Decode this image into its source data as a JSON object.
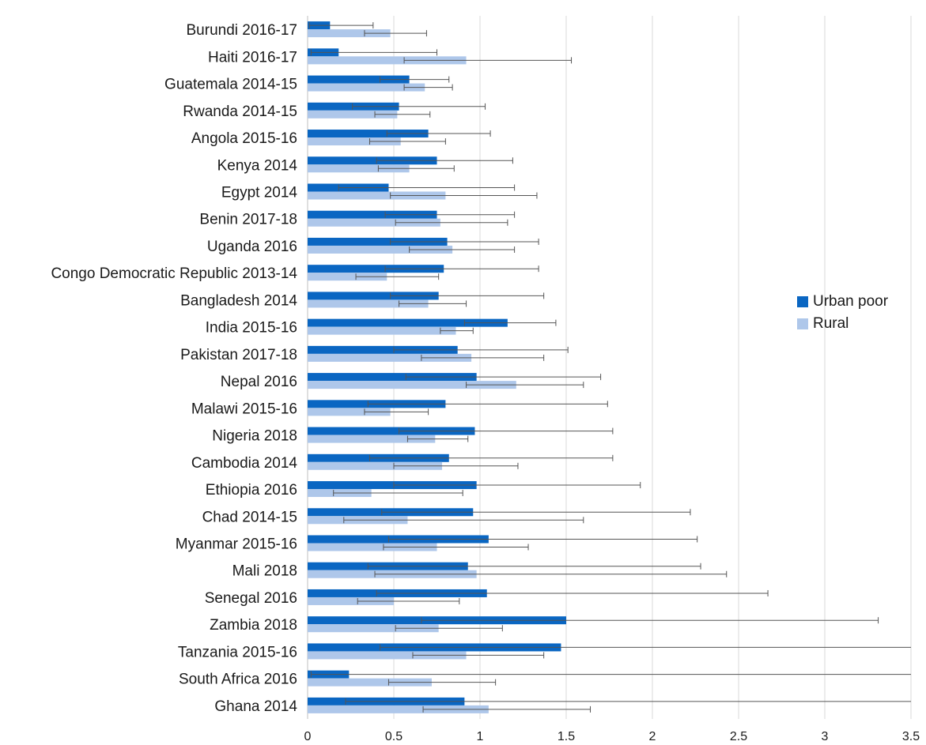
{
  "chart_data": {
    "type": "bar",
    "orientation": "horizontal",
    "categories": [
      "Burundi 2016-17",
      "Haiti 2016-17",
      "Guatemala 2014-15",
      "Rwanda 2014-15",
      "Angola 2015-16",
      "Kenya 2014",
      "Egypt 2014",
      "Benin 2017-18",
      "Uganda 2016",
      "Congo Democratic Republic 2013-14",
      "Bangladesh 2014",
      "India 2015-16",
      "Pakistan 2017-18",
      "Nepal 2016",
      "Malawi 2015-16",
      "Nigeria 2018",
      "Cambodia 2014",
      "Ethiopia 2016",
      "Chad 2014-15",
      "Myanmar 2015-16",
      "Mali 2018",
      "Senegal 2016",
      "Zambia 2018",
      "Tanzania 2015-16",
      "South Africa 2016",
      "Ghana 2014"
    ],
    "series": [
      {
        "name": "Urban poor",
        "color": "#0a66c2",
        "values": [
          0.13,
          0.18,
          0.59,
          0.53,
          0.7,
          0.75,
          0.47,
          0.75,
          0.81,
          0.79,
          0.76,
          1.16,
          0.87,
          0.98,
          0.8,
          0.97,
          0.82,
          0.98,
          0.96,
          1.05,
          0.93,
          1.04,
          1.5,
          1.47,
          0.24,
          0.91
        ],
        "error_low": [
          0.01,
          0.02,
          0.42,
          0.26,
          0.46,
          0.4,
          0.18,
          0.45,
          0.48,
          0.45,
          0.48,
          0.91,
          0.5,
          0.57,
          0.35,
          0.53,
          0.36,
          0.5,
          0.43,
          0.47,
          0.35,
          0.4,
          0.66,
          0.42,
          0.02,
          0.22
        ],
        "error_high": [
          0.38,
          0.75,
          0.82,
          1.03,
          1.06,
          1.19,
          1.2,
          1.2,
          1.34,
          1.34,
          1.37,
          1.44,
          1.51,
          1.7,
          1.74,
          1.77,
          1.77,
          1.93,
          2.22,
          2.26,
          2.28,
          2.67,
          3.31,
          3.5,
          3.5,
          3.5
        ]
      },
      {
        "name": "Rural",
        "color": "#aec7ea",
        "values": [
          0.48,
          0.92,
          0.68,
          0.52,
          0.54,
          0.59,
          0.8,
          0.77,
          0.84,
          0.46,
          0.7,
          0.86,
          0.95,
          1.21,
          0.48,
          0.74,
          0.78,
          0.37,
          0.58,
          0.75,
          0.98,
          0.5,
          0.76,
          0.92,
          0.72,
          1.05
        ],
        "error_low": [
          0.33,
          0.56,
          0.56,
          0.39,
          0.36,
          0.41,
          0.48,
          0.51,
          0.59,
          0.28,
          0.53,
          0.77,
          0.66,
          0.92,
          0.33,
          0.58,
          0.5,
          0.15,
          0.21,
          0.44,
          0.39,
          0.29,
          0.51,
          0.61,
          0.47,
          0.67
        ],
        "error_high": [
          0.69,
          1.53,
          0.84,
          0.71,
          0.8,
          0.85,
          1.33,
          1.16,
          1.2,
          0.76,
          0.92,
          0.96,
          1.37,
          1.6,
          0.7,
          0.93,
          1.22,
          0.9,
          1.6,
          1.28,
          2.43,
          0.88,
          1.13,
          1.37,
          1.09,
          1.64
        ]
      }
    ],
    "xlim": [
      0,
      3.5
    ],
    "xticks": [
      "0",
      "0.5",
      "1",
      "1.5",
      "2",
      "2.5",
      "3",
      "3.5"
    ],
    "grid": "vertical",
    "legend_position": "right"
  }
}
